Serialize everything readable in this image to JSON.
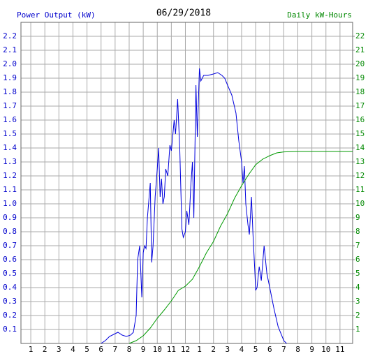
{
  "chart_data": {
    "type": "line",
    "title": "06/29/2018",
    "y_label": "Power Output (kW)",
    "y2_label": "Daily kW-Hours",
    "xlim": [
      0.3,
      23.9
    ],
    "xticks": [
      {
        "value": 1,
        "label": "1"
      },
      {
        "value": 2,
        "label": "2"
      },
      {
        "value": 3,
        "label": "3"
      },
      {
        "value": 4,
        "label": "4"
      },
      {
        "value": 5,
        "label": "5"
      },
      {
        "value": 6,
        "label": "6"
      },
      {
        "value": 7,
        "label": "7"
      },
      {
        "value": 8,
        "label": "8"
      },
      {
        "value": 9,
        "label": "9"
      },
      {
        "value": 10,
        "label": "10"
      },
      {
        "value": 11,
        "label": "11"
      },
      {
        "value": 12,
        "label": "12"
      },
      {
        "value": 13,
        "label": "1"
      },
      {
        "value": 14,
        "label": "2"
      },
      {
        "value": 15,
        "label": "3"
      },
      {
        "value": 16,
        "label": "4"
      },
      {
        "value": 17,
        "label": "5"
      },
      {
        "value": 18,
        "label": "6"
      },
      {
        "value": 19,
        "label": "7"
      },
      {
        "value": 20,
        "label": "8"
      },
      {
        "value": 21,
        "label": "9"
      },
      {
        "value": 22,
        "label": "10"
      },
      {
        "value": 23,
        "label": "11"
      }
    ],
    "ylim": [
      0,
      2.3
    ],
    "yticks": [
      0.1,
      0.2,
      0.3,
      0.4,
      0.5,
      0.6,
      0.7,
      0.8,
      0.9,
      {
        "value": 1,
        "label": "1.0"
      },
      1.1,
      1.2,
      1.3,
      1.4,
      1.5,
      1.6,
      1.7,
      1.8,
      1.9,
      {
        "value": 2,
        "label": "2.0"
      },
      2.1,
      2.2
    ],
    "y2lim": [
      0,
      23
    ],
    "y2ticks": [
      1,
      2,
      3,
      4,
      5,
      6,
      7,
      8,
      9,
      10,
      11,
      12,
      13,
      14,
      15,
      16,
      17,
      18,
      19,
      20,
      21,
      22
    ],
    "grid": true,
    "y_color": "#0000cc",
    "y2_color": "#008800",
    "series": [
      {
        "color": "#0000dd",
        "x": [
          6.0,
          6.3,
          6.6,
          7.0,
          7.2,
          7.5,
          7.8,
          8.1,
          8.3,
          8.5,
          8.6,
          8.75,
          8.9,
          9.0,
          9.1,
          9.2,
          9.3,
          9.5,
          9.6,
          9.7,
          9.85,
          10.0,
          10.1,
          10.2,
          10.3,
          10.4,
          10.5,
          10.6,
          10.75,
          10.9,
          11.0,
          11.2,
          11.3,
          11.45,
          11.6,
          11.75,
          11.85,
          12.0,
          12.1,
          12.25,
          12.4,
          12.5,
          12.6,
          12.75,
          12.85,
          13.0,
          13.1,
          13.3,
          13.6,
          14.0,
          14.3,
          14.6,
          14.8,
          15.0,
          15.3,
          15.6,
          15.8,
          16.0,
          16.1,
          16.2,
          16.3,
          16.45,
          16.55,
          16.7,
          16.8,
          16.95,
          17.0,
          17.1,
          17.25,
          17.4,
          17.6,
          17.8,
          18.0,
          18.3,
          18.6,
          19.0,
          19.2
        ],
        "values": [
          0,
          0.02,
          0.05,
          0.07,
          0.08,
          0.06,
          0.05,
          0.06,
          0.08,
          0.2,
          0.6,
          0.7,
          0.33,
          0.65,
          0.7,
          0.68,
          0.9,
          1.15,
          0.58,
          0.7,
          1.05,
          1.25,
          1.4,
          1.05,
          1.18,
          1.0,
          1.05,
          1.25,
          1.2,
          1.42,
          1.38,
          1.6,
          1.5,
          1.75,
          1.4,
          0.82,
          0.76,
          0.8,
          0.95,
          0.85,
          1.15,
          1.3,
          0.9,
          1.85,
          1.48,
          1.97,
          1.88,
          1.92,
          1.92,
          1.93,
          1.94,
          1.92,
          1.9,
          1.85,
          1.78,
          1.65,
          1.45,
          1.3,
          1.15,
          1.27,
          1.0,
          0.85,
          0.78,
          1.05,
          0.8,
          0.5,
          0.38,
          0.4,
          0.55,
          0.45,
          0.7,
          0.5,
          0.4,
          0.25,
          0.12,
          0.02,
          0
        ]
      },
      {
        "color": "#009900",
        "axis": "y2",
        "x": [
          8.0,
          8.5,
          9.0,
          9.5,
          10.0,
          10.5,
          11.0,
          11.5,
          12.0,
          12.5,
          13.0,
          13.5,
          14.0,
          14.5,
          15.0,
          15.5,
          16.0,
          16.5,
          17.0,
          17.5,
          18.0,
          18.5,
          19.0,
          20.0,
          23.9
        ],
        "values": [
          0,
          0.2,
          0.55,
          1.1,
          1.8,
          2.4,
          3.05,
          3.8,
          4.1,
          4.6,
          5.5,
          6.5,
          7.3,
          8.4,
          9.3,
          10.4,
          11.3,
          12.1,
          12.8,
          13.2,
          13.45,
          13.65,
          13.72,
          13.75,
          13.75
        ]
      }
    ]
  }
}
